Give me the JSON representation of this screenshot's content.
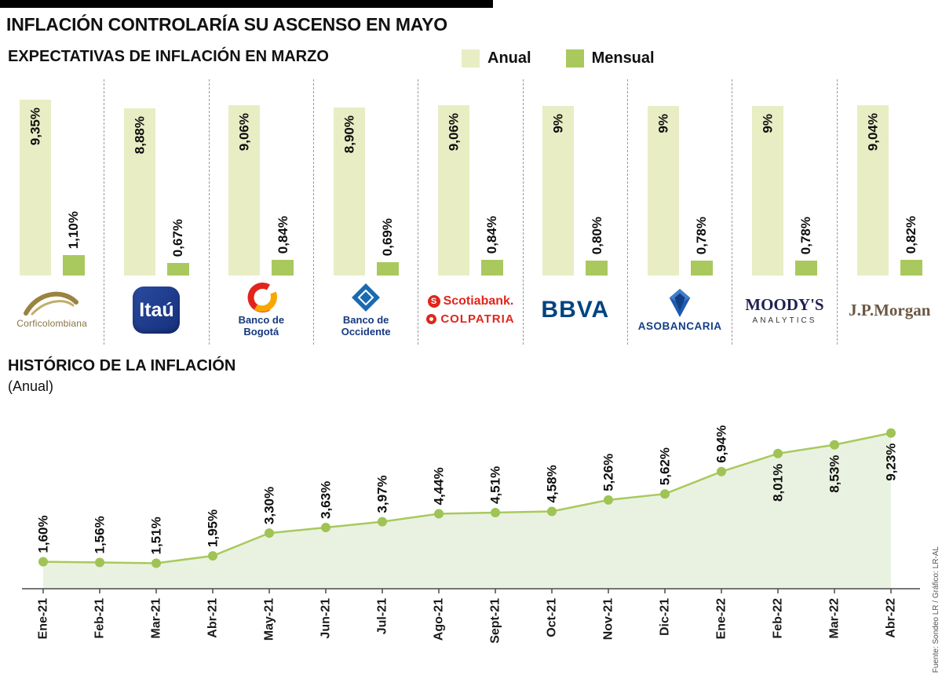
{
  "page": {
    "title": "INFLACIÓN CONTROLARÍA SU ASCENSO EN MAYO",
    "source": "Fuente: Sondeo LR / Gráfico: LR-AL"
  },
  "colors": {
    "anual_bar": "#e9edc4",
    "mensual_bar": "#a9c95e",
    "line": "#a9c95e",
    "area_fill": "#e9f2e0",
    "dot": "#9fc355"
  },
  "chart_data": [
    {
      "type": "bar",
      "title": "EXPECTATIVAS DE INFLACIÓN EN MARZO",
      "legend": [
        "Anual",
        "Mensual"
      ],
      "ylim": [
        0,
        10
      ],
      "grid": false,
      "entities": [
        {
          "name": "Corficolombiana",
          "logo": "corficolombiana",
          "lines": [
            "Corficolombiana"
          ],
          "anual": 9.35,
          "anual_label": "9,35%",
          "mensual": 1.1,
          "mensual_label": "1,10%"
        },
        {
          "name": "Itaú",
          "logo": "itau",
          "lines": [
            "Itaú"
          ],
          "anual": 8.88,
          "anual_label": "8,88%",
          "mensual": 0.67,
          "mensual_label": "0,67%"
        },
        {
          "name": "Banco de Bogotá",
          "logo": "bogota",
          "lines": [
            "Banco de",
            "Bogotá"
          ],
          "anual": 9.06,
          "anual_label": "9,06%",
          "mensual": 0.84,
          "mensual_label": "0,84%"
        },
        {
          "name": "Banco de Occidente",
          "logo": "occidente",
          "lines": [
            "Banco de",
            "Occidente"
          ],
          "anual": 8.9,
          "anual_label": "8,90%",
          "mensual": 0.69,
          "mensual_label": "0,69%"
        },
        {
          "name": "Scotiabank Colpatria",
          "logo": "scotiabank",
          "lines": [
            "Scotiabank.",
            "COLPATRIA"
          ],
          "anual": 9.06,
          "anual_label": "9,06%",
          "mensual": 0.84,
          "mensual_label": "0,84%"
        },
        {
          "name": "BBVA",
          "logo": "bbva",
          "lines": [
            "BBVA"
          ],
          "anual": 9.0,
          "anual_label": "9%",
          "mensual": 0.8,
          "mensual_label": "0,80%"
        },
        {
          "name": "Asobancaria",
          "logo": "asobancaria",
          "lines": [
            "ASOBANCARIA"
          ],
          "anual": 9.0,
          "anual_label": "9%",
          "mensual": 0.78,
          "mensual_label": "0,78%"
        },
        {
          "name": "Moody's Analytics",
          "logo": "moodys",
          "lines": [
            "MOODY'S",
            "ANALYTICS"
          ],
          "anual": 9.0,
          "anual_label": "9%",
          "mensual": 0.78,
          "mensual_label": "0,78%"
        },
        {
          "name": "J.P.Morgan",
          "logo": "jpmorgan",
          "lines": [
            "J.P.Morgan"
          ],
          "anual": 9.04,
          "anual_label": "9,04%",
          "mensual": 0.82,
          "mensual_label": "0,82%"
        }
      ]
    },
    {
      "type": "area",
      "title": "HISTÓRICO DE LA INFLACIÓN",
      "subtitle": "(Anual)",
      "categories": [
        "Ene-21",
        "Feb-21",
        "Mar-21",
        "Abr-21",
        "May-21",
        "Jun-21",
        "Jul-21",
        "Ago-21",
        "Sept-21",
        "Oct-21",
        "Nov-21",
        "Dic-21",
        "Ene-22",
        "Feb-22",
        "Mar-22",
        "Abr-22"
      ],
      "values": [
        1.6,
        1.56,
        1.51,
        1.95,
        3.3,
        3.63,
        3.97,
        4.44,
        4.51,
        4.58,
        5.26,
        5.62,
        6.94,
        8.01,
        8.53,
        9.23
      ],
      "labels": [
        "1,60%",
        "1,56%",
        "1,51%",
        "1,95%",
        "3,30%",
        "3,63%",
        "3,97%",
        "4,44%",
        "4,51%",
        "4,58%",
        "5,26%",
        "5,62%",
        "6,94%",
        "8,01%",
        "8,53%",
        "9,23%"
      ],
      "ylim": [
        0,
        10
      ],
      "grid": false,
      "legend_position": "none"
    }
  ]
}
